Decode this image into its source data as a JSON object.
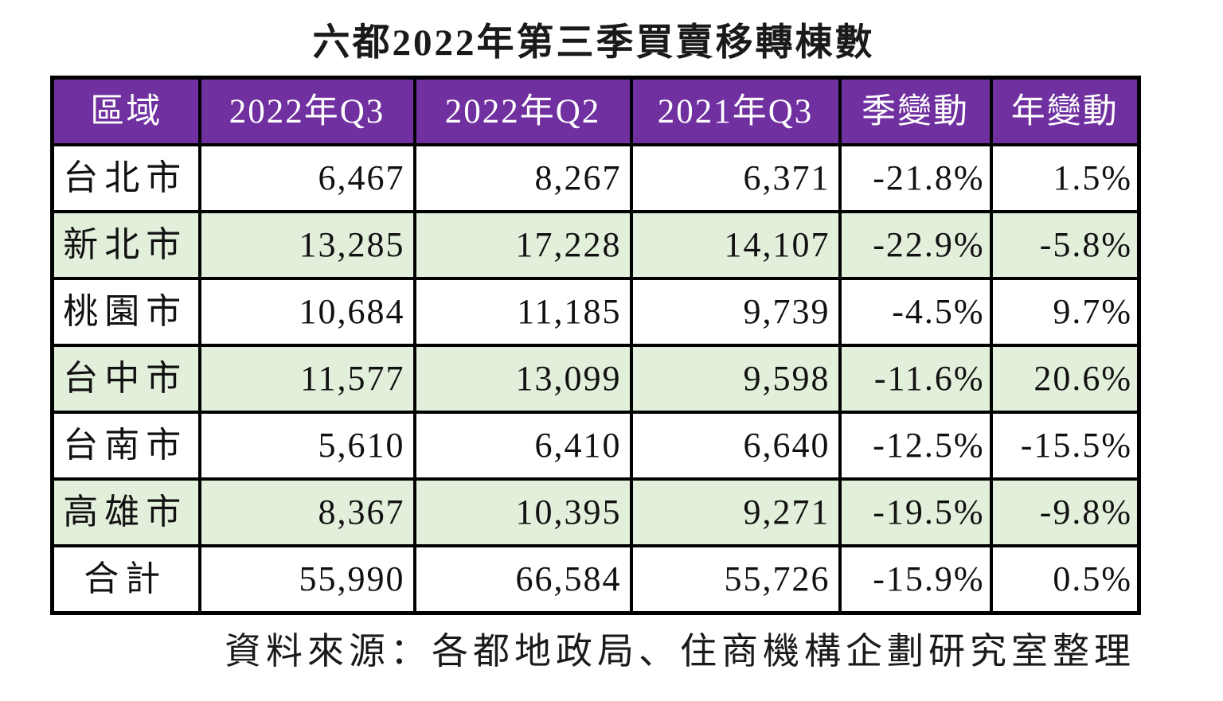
{
  "title": "六都2022年第三季買賣移轉棟數",
  "source_note": "資料來源：各都地政局、住商機構企劃研究室整理",
  "colors": {
    "header_bg": "#7030A0",
    "header_text": "#FFFFFF",
    "stripe_bg": "#E2EFDA",
    "border": "#000000"
  },
  "chart_data": {
    "type": "table",
    "title": "六都2022年第三季買賣移轉棟數",
    "columns": [
      "區域",
      "2022年Q3",
      "2022年Q2",
      "2021年Q3",
      "季變動",
      "年變動"
    ],
    "rows": [
      [
        "台北市",
        "6,467",
        "8,267",
        "6,371",
        "-21.8%",
        "1.5%"
      ],
      [
        "新北市",
        "13,285",
        "17,228",
        "14,107",
        "-22.9%",
        "-5.8%"
      ],
      [
        "桃園市",
        "10,684",
        "11,185",
        "9,739",
        "-4.5%",
        "9.7%"
      ],
      [
        "台中市",
        "11,577",
        "13,099",
        "9,598",
        "-11.6%",
        "20.6%"
      ],
      [
        "台南市",
        "5,610",
        "6,410",
        "6,640",
        "-12.5%",
        "-15.5%"
      ],
      [
        "高雄市",
        "8,367",
        "10,395",
        "9,271",
        "-19.5%",
        "-9.8%"
      ],
      [
        "合計",
        "55,990",
        "66,584",
        "55,726",
        "-15.9%",
        "0.5%"
      ]
    ],
    "notes": "Quarterly building sale-transfer counts for Taiwan's six municipalities; 季變動 = quarter-over-quarter change, 年變動 = year-over-year change"
  }
}
